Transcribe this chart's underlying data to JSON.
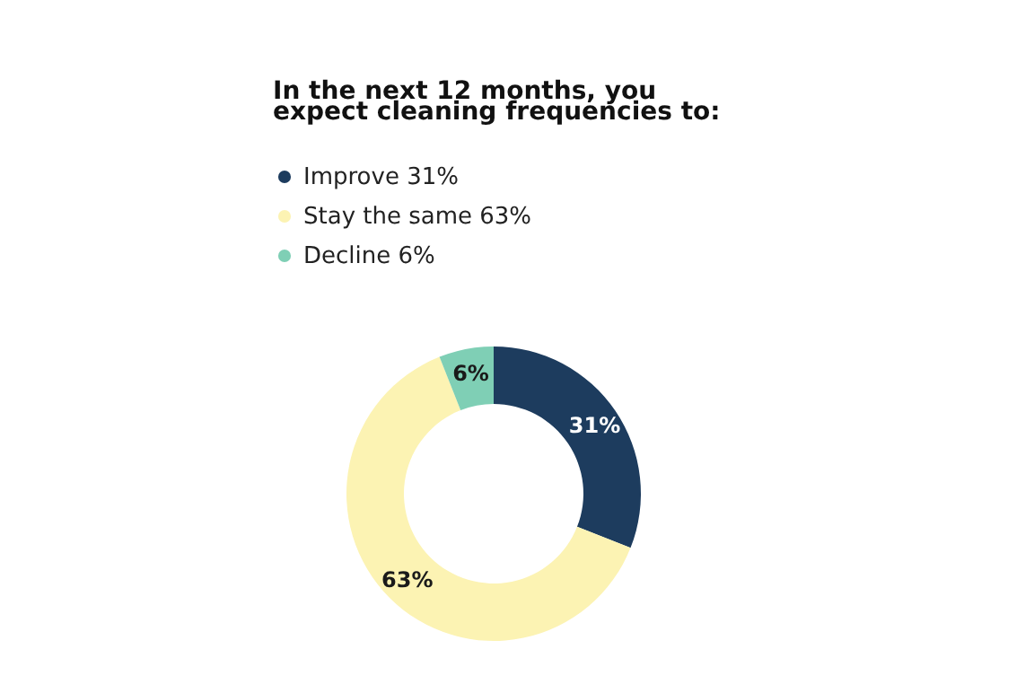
{
  "chart_data": {
    "type": "donut",
    "title": "In the next 12 months, you\nexpect cleaning frequencies to:",
    "categories": [
      "Improve",
      "Stay the same",
      "Decline"
    ],
    "values": [
      31,
      63,
      6
    ],
    "value_labels": [
      "31%",
      "63%",
      "6%"
    ],
    "colors": [
      "#1d3c5e",
      "#fcf3b3",
      "#7fcfb5"
    ],
    "data_labels": true,
    "legend": "top left"
  }
}
